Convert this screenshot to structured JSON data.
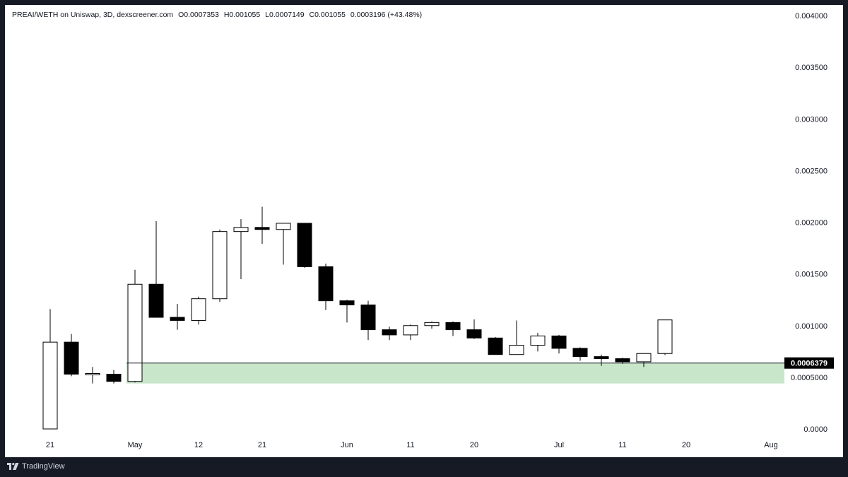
{
  "header": {
    "symbol": "PREAI/WETH on Uniswap, 3D, dexscreener.com",
    "open": "O0.0007353",
    "high": "H0.001055",
    "low": "L0.0007149",
    "close": "C0.001055",
    "change": "0.0003196 (+43.48%)"
  },
  "footer": {
    "brand": "TradingView"
  },
  "colors": {
    "up_fill": "#ffffff",
    "down_fill": "#000000",
    "zone": "#c8e6c9",
    "price_line": "#131722",
    "label_bg": "#000000",
    "label_text": "#ffffff"
  },
  "chart_data": {
    "type": "candlestick",
    "y_range": [
      0,
      0.004
    ],
    "y_ticks": [
      "0.004000",
      "0.003500",
      "0.003000",
      "0.002500",
      "0.002000",
      "0.001500",
      "0.001000",
      "0.0005000",
      "0.0000"
    ],
    "y_tick_values": [
      0.004,
      0.0035,
      0.003,
      0.0025,
      0.002,
      0.0015,
      0.001,
      0.0005,
      0
    ],
    "x_ticks": [
      {
        "label": "21",
        "index": 0
      },
      {
        "label": "May",
        "index": 4
      },
      {
        "label": "12",
        "index": 7
      },
      {
        "label": "21",
        "index": 10
      },
      {
        "label": "Jun",
        "index": 14
      },
      {
        "label": "11",
        "index": 17
      },
      {
        "label": "20",
        "index": 20
      },
      {
        "label": "Jul",
        "index": 24
      },
      {
        "label": "11",
        "index": 27
      },
      {
        "label": "20",
        "index": 30
      },
      {
        "label": "Aug",
        "index": 34
      }
    ],
    "x_index_max": 35.5,
    "candles": [
      {
        "o": 0.0,
        "h": 0.00116,
        "l": 0.0,
        "c": 0.00084
      },
      {
        "o": 0.00084,
        "h": 0.00092,
        "l": 0.00051,
        "c": 0.00053
      },
      {
        "o": 0.00053,
        "h": 0.0006,
        "l": 0.00044,
        "c": 0.00053
      },
      {
        "o": 0.00053,
        "h": 0.00057,
        "l": 0.00044,
        "c": 0.00046
      },
      {
        "o": 0.00046,
        "h": 0.00154,
        "l": 0.00045,
        "c": 0.0014
      },
      {
        "o": 0.0014,
        "h": 0.00201,
        "l": 0.00108,
        "c": 0.00108
      },
      {
        "o": 0.00108,
        "h": 0.00121,
        "l": 0.00096,
        "c": 0.00105
      },
      {
        "o": 0.00105,
        "h": 0.00128,
        "l": 0.00101,
        "c": 0.00126
      },
      {
        "o": 0.00126,
        "h": 0.00193,
        "l": 0.00123,
        "c": 0.00191
      },
      {
        "o": 0.00191,
        "h": 0.00203,
        "l": 0.00145,
        "c": 0.00195
      },
      {
        "o": 0.00195,
        "h": 0.00215,
        "l": 0.00179,
        "c": 0.00193
      },
      {
        "o": 0.00193,
        "h": 0.00199,
        "l": 0.00159,
        "c": 0.00199
      },
      {
        "o": 0.00199,
        "h": 0.00199,
        "l": 0.00156,
        "c": 0.00157
      },
      {
        "o": 0.00157,
        "h": 0.0016,
        "l": 0.00115,
        "c": 0.00124
      },
      {
        "o": 0.00124,
        "h": 0.00125,
        "l": 0.00103,
        "c": 0.0012
      },
      {
        "o": 0.0012,
        "h": 0.00124,
        "l": 0.00086,
        "c": 0.00096
      },
      {
        "o": 0.00096,
        "h": 0.00099,
        "l": 0.00086,
        "c": 0.00091
      },
      {
        "o": 0.00091,
        "h": 0.00101,
        "l": 0.00086,
        "c": 0.001
      },
      {
        "o": 0.001,
        "h": 0.00104,
        "l": 0.00097,
        "c": 0.00103
      },
      {
        "o": 0.00103,
        "h": 0.00104,
        "l": 0.0009,
        "c": 0.00096
      },
      {
        "o": 0.00096,
        "h": 0.00106,
        "l": 0.00087,
        "c": 0.00088
      },
      {
        "o": 0.00088,
        "h": 0.00089,
        "l": 0.00072,
        "c": 0.00072
      },
      {
        "o": 0.00072,
        "h": 0.00105,
        "l": 0.00072,
        "c": 0.00081
      },
      {
        "o": 0.00081,
        "h": 0.00093,
        "l": 0.00075,
        "c": 0.0009
      },
      {
        "o": 0.0009,
        "h": 0.00091,
        "l": 0.00073,
        "c": 0.00078
      },
      {
        "o": 0.00078,
        "h": 0.00079,
        "l": 0.00066,
        "c": 0.0007
      },
      {
        "o": 0.0007,
        "h": 0.00072,
        "l": 0.00061,
        "c": 0.00068
      },
      {
        "o": 0.00068,
        "h": 0.00069,
        "l": 0.00063,
        "c": 0.00065
      },
      {
        "o": 0.00065,
        "h": 0.00073,
        "l": 0.0006,
        "c": 0.00073
      },
      {
        "o": 0.00073,
        "h": 0.001055,
        "l": 0.0007149,
        "c": 0.001055
      }
    ],
    "zone": {
      "from_index": 3.6,
      "top": 0.0006379,
      "bottom": 0.00044
    },
    "price_line": {
      "value": 0.0006379,
      "from_index": 3.6
    },
    "price_label": "0.0006379"
  }
}
